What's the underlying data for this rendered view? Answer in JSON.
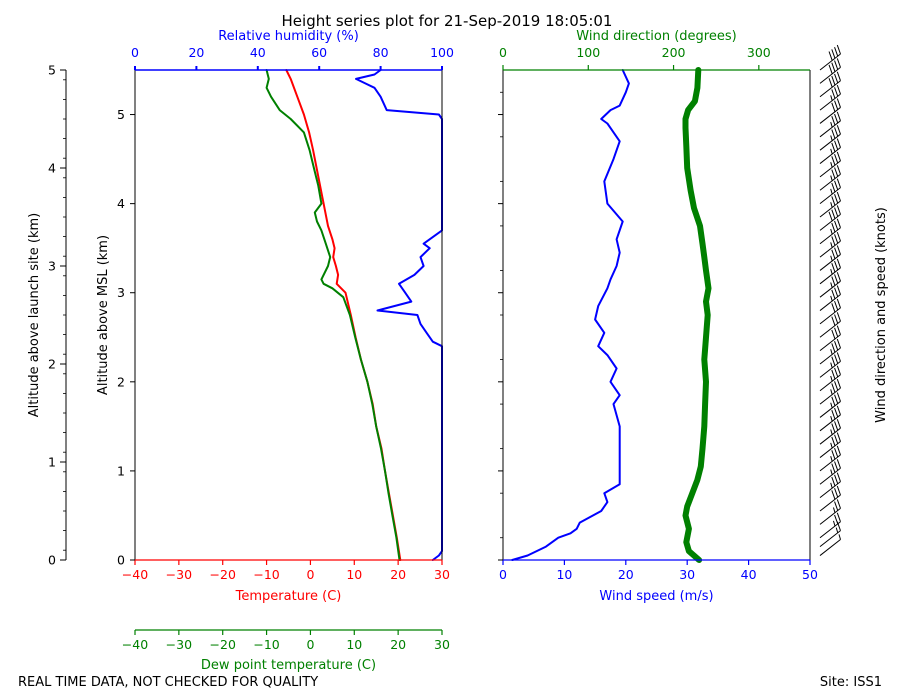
{
  "title": "Height series plot for 21-Sep-2019 18:05:01",
  "footer": {
    "left": "REAL TIME DATA, NOT CHECKED FOR QUALITY",
    "right": "Site: ISS1"
  },
  "colors": {
    "temperature": "#ff0000",
    "dewpoint": "#008000",
    "humidity": "#0000ff",
    "wind_speed": "#0000ff",
    "wind_direction": "#008000",
    "axis": "#000000",
    "barbs": "#000000"
  },
  "chart_data": [
    {
      "type": "line",
      "title": "Height series plot for 21-Sep-2019 18:05:01",
      "ylabel_left": "Altitude above launch site (km)",
      "ylabel_right": "Altitude above MSL (km)",
      "ylim_msl": [
        0,
        5.5
      ],
      "ylim_launch_site": [
        0,
        5
      ],
      "yticks_msl": [
        0,
        1,
        2,
        3,
        4,
        5
      ],
      "yticks_launch_site": [
        0,
        1,
        2,
        3,
        4,
        5
      ],
      "x_axes": [
        {
          "id": "temperature",
          "label": "Temperature (C)",
          "lim": [
            -40,
            30
          ],
          "ticks": [
            -40,
            -30,
            -20,
            -10,
            0,
            10,
            20,
            30
          ],
          "position": "bottom"
        },
        {
          "id": "dewpoint",
          "label": "Dew point temperature (C)",
          "lim": [
            -40,
            30
          ],
          "ticks": [
            -40,
            -30,
            -20,
            -10,
            0,
            10,
            20,
            30
          ],
          "position": "bottom-offset"
        },
        {
          "id": "humidity",
          "label": "Relative humidity (%)",
          "lim": [
            0,
            100
          ],
          "ticks": [
            0,
            20,
            40,
            60,
            80,
            100
          ],
          "position": "top"
        }
      ],
      "series": [
        {
          "name": "Temperature",
          "axis": "temperature",
          "color": "#ff0000",
          "points": [
            [
              20.5,
              0
            ],
            [
              19.7,
              0.25
            ],
            [
              18.8,
              0.5
            ],
            [
              17.9,
              0.75
            ],
            [
              17.0,
              1.0
            ],
            [
              16.2,
              1.25
            ],
            [
              15.0,
              1.5
            ],
            [
              14.2,
              1.75
            ],
            [
              13.0,
              2.0
            ],
            [
              11.5,
              2.25
            ],
            [
              10.3,
              2.5
            ],
            [
              9.2,
              2.75
            ],
            [
              8.0,
              3.0
            ],
            [
              6.0,
              3.1
            ],
            [
              6.3,
              3.2
            ],
            [
              5.8,
              3.3
            ],
            [
              5.2,
              3.4
            ],
            [
              5.5,
              3.5
            ],
            [
              5.0,
              3.6
            ],
            [
              4.0,
              3.75
            ],
            [
              3.0,
              4.0
            ],
            [
              2.2,
              4.2
            ],
            [
              1.4,
              4.4
            ],
            [
              0.6,
              4.6
            ],
            [
              -0.3,
              4.8
            ],
            [
              -1.5,
              5.0
            ],
            [
              -3.0,
              5.2
            ],
            [
              -4.5,
              5.4
            ],
            [
              -5.5,
              5.5
            ]
          ]
        },
        {
          "name": "Dew point",
          "axis": "dewpoint",
          "color": "#008000",
          "points": [
            [
              20.3,
              0
            ],
            [
              19.6,
              0.25
            ],
            [
              18.7,
              0.5
            ],
            [
              17.8,
              0.75
            ],
            [
              17.0,
              1.0
            ],
            [
              16.1,
              1.25
            ],
            [
              15.0,
              1.5
            ],
            [
              14.1,
              1.75
            ],
            [
              13.0,
              2.0
            ],
            [
              11.5,
              2.25
            ],
            [
              10.2,
              2.5
            ],
            [
              9.0,
              2.75
            ],
            [
              7.5,
              2.95
            ],
            [
              5.0,
              3.05
            ],
            [
              3.0,
              3.1
            ],
            [
              2.5,
              3.15
            ],
            [
              4.0,
              3.3
            ],
            [
              4.5,
              3.4
            ],
            [
              3.5,
              3.55
            ],
            [
              2.5,
              3.7
            ],
            [
              1.5,
              3.8
            ],
            [
              1.0,
              3.9
            ],
            [
              2.5,
              4.0
            ],
            [
              1.8,
              4.2
            ],
            [
              0.8,
              4.4
            ],
            [
              -0.2,
              4.6
            ],
            [
              -1.5,
              4.8
            ],
            [
              -4.5,
              4.95
            ],
            [
              -7.0,
              5.05
            ],
            [
              -9.0,
              5.2
            ],
            [
              -10.0,
              5.3
            ],
            [
              -9.5,
              5.4
            ],
            [
              -10.0,
              5.5
            ]
          ]
        },
        {
          "name": "Relative humidity",
          "axis": "humidity",
          "color": "#0000ff",
          "points": [
            [
              97,
              0
            ],
            [
              99,
              0.05
            ],
            [
              100,
              0.1
            ],
            [
              100,
              2.4
            ],
            [
              97,
              2.45
            ],
            [
              95,
              2.55
            ],
            [
              93,
              2.65
            ],
            [
              92,
              2.75
            ],
            [
              79,
              2.8
            ],
            [
              90,
              2.9
            ],
            [
              88,
              3.0
            ],
            [
              86,
              3.1
            ],
            [
              91,
              3.2
            ],
            [
              94,
              3.3
            ],
            [
              93,
              3.4
            ],
            [
              96,
              3.5
            ],
            [
              94,
              3.55
            ],
            [
              100,
              3.7
            ],
            [
              100,
              4.95
            ],
            [
              99,
              5.0
            ],
            [
              82,
              5.05
            ],
            [
              80,
              5.2
            ],
            [
              78,
              5.3
            ],
            [
              75,
              5.35
            ],
            [
              72,
              5.4
            ],
            [
              78,
              5.45
            ],
            [
              80,
              5.5
            ]
          ]
        }
      ]
    },
    {
      "type": "line",
      "x_axes": [
        {
          "id": "wind_speed",
          "label": "Wind speed (m/s)",
          "lim": [
            0,
            50
          ],
          "ticks": [
            0,
            10,
            20,
            30,
            40,
            50
          ],
          "position": "bottom"
        },
        {
          "id": "wind_direction",
          "label": "Wind direction (degrees)",
          "lim": [
            0,
            360
          ],
          "ticks": [
            0,
            100,
            200,
            300
          ],
          "position": "top"
        }
      ],
      "ylim": [
        0,
        5.5
      ],
      "series": [
        {
          "name": "Wind speed",
          "axis": "wind_speed",
          "color": "#0000ff",
          "points": [
            [
              1.5,
              0
            ],
            [
              4,
              0.05
            ],
            [
              7,
              0.15
            ],
            [
              9,
              0.25
            ],
            [
              11,
              0.3
            ],
            [
              12,
              0.35
            ],
            [
              12.5,
              0.42
            ],
            [
              16,
              0.55
            ],
            [
              17,
              0.65
            ],
            [
              16.5,
              0.75
            ],
            [
              19,
              0.85
            ],
            [
              19,
              1.0
            ],
            [
              19,
              1.25
            ],
            [
              19,
              1.5
            ],
            [
              18,
              1.75
            ],
            [
              19,
              1.85
            ],
            [
              17.5,
              2.0
            ],
            [
              18.5,
              2.15
            ],
            [
              17,
              2.3
            ],
            [
              15.5,
              2.4
            ],
            [
              16.5,
              2.55
            ],
            [
              15,
              2.7
            ],
            [
              15.5,
              2.85
            ],
            [
              17,
              3.05
            ],
            [
              17.5,
              3.15
            ],
            [
              18.5,
              3.3
            ],
            [
              19,
              3.45
            ],
            [
              18.5,
              3.6
            ],
            [
              19.5,
              3.8
            ],
            [
              17,
              4.0
            ],
            [
              16.5,
              4.25
            ],
            [
              18,
              4.5
            ],
            [
              19,
              4.7
            ],
            [
              17,
              4.9
            ],
            [
              16,
              4.95
            ],
            [
              17.5,
              5.05
            ],
            [
              19,
              5.1
            ],
            [
              20,
              5.25
            ],
            [
              20.5,
              5.35
            ],
            [
              19.5,
              5.5
            ]
          ]
        },
        {
          "name": "Wind direction",
          "axis": "wind_direction",
          "color": "#008000",
          "points": [
            [
              230,
              0
            ],
            [
              218,
              0.1
            ],
            [
              215,
              0.2
            ],
            [
              218,
              0.35
            ],
            [
              214,
              0.5
            ],
            [
              216,
              0.6
            ],
            [
              222,
              0.75
            ],
            [
              228,
              0.9
            ],
            [
              232,
              1.05
            ],
            [
              234,
              1.25
            ],
            [
              236,
              1.5
            ],
            [
              237,
              1.75
            ],
            [
              238,
              2.0
            ],
            [
              236,
              2.25
            ],
            [
              238,
              2.5
            ],
            [
              240,
              2.75
            ],
            [
              238,
              2.9
            ],
            [
              241,
              3.05
            ],
            [
              238,
              3.25
            ],
            [
              236,
              3.4
            ],
            [
              234,
              3.55
            ],
            [
              231,
              3.75
            ],
            [
              224,
              3.95
            ],
            [
              220,
              4.15
            ],
            [
              216,
              4.4
            ],
            [
              215,
              4.65
            ],
            [
              214,
              4.85
            ],
            [
              214,
              4.95
            ],
            [
              217,
              5.05
            ],
            [
              225,
              5.15
            ],
            [
              228,
              5.3
            ],
            [
              229,
              5.5
            ]
          ]
        }
      ]
    },
    {
      "type": "wind_barbs",
      "label": "Wind direction and speed (knots)",
      "altitudes_km_msl": [
        0.05,
        0.15,
        0.25,
        0.4,
        0.55,
        0.7,
        0.85,
        1.0,
        1.15,
        1.3,
        1.45,
        1.6,
        1.75,
        1.9,
        2.05,
        2.2,
        2.35,
        2.5,
        2.65,
        2.8,
        2.95,
        3.1,
        3.25,
        3.4,
        3.55,
        3.7,
        3.85,
        4.0,
        4.15,
        4.3,
        4.45,
        4.6,
        4.75,
        4.9,
        5.05,
        5.2,
        5.35,
        5.5
      ],
      "speed_knots": [
        6,
        17,
        24,
        25,
        32,
        34,
        36,
        37,
        37,
        37,
        36,
        36,
        36,
        35,
        35,
        33,
        31,
        31,
        30,
        33,
        34,
        35,
        36,
        37,
        37,
        38,
        35,
        33,
        33,
        35,
        37,
        37,
        33,
        31,
        35,
        38,
        40,
        39
      ]
    }
  ]
}
